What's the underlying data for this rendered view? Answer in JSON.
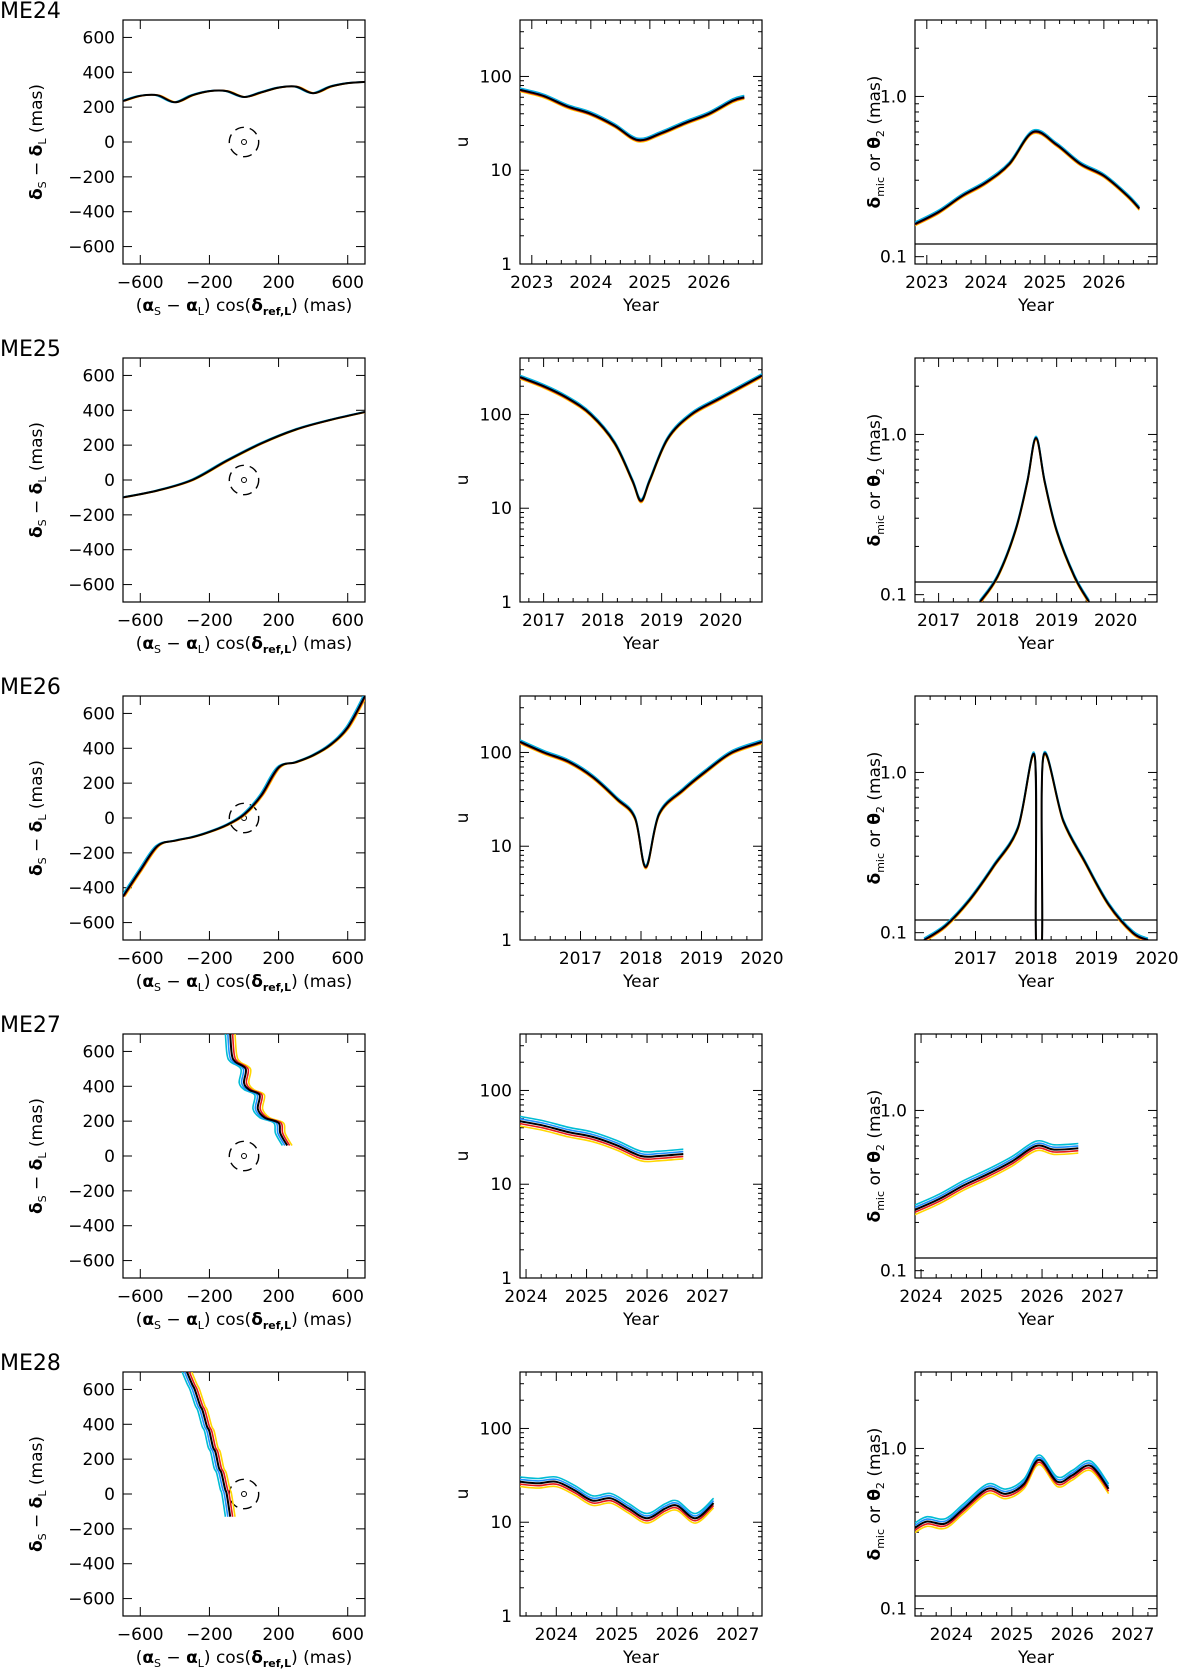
{
  "series_colors": [
    "#000000",
    "#e41a1c",
    "#ffd700",
    "#1e90ff",
    "#00bcd4"
  ],
  "chart_data": [
    {
      "type": "line",
      "row_label": "ME24",
      "panel": "trajectory",
      "xlabel": "(αS − αL) cos(δref,L) (mas)",
      "ylabel": "δS − δL (mas)",
      "xlim": [
        -700,
        700
      ],
      "ylim": [
        -700,
        700
      ],
      "xticks": [
        -600,
        -200,
        200,
        600
      ],
      "yticks": [
        -600,
        -400,
        -200,
        0,
        200,
        400,
        600
      ],
      "xticklabels": [
        "−600",
        "−200",
        "200",
        "600"
      ],
      "yticklabels": [
        "−600",
        "−400",
        "−200",
        "0",
        "200",
        "400",
        "600"
      ],
      "lens_marker": {
        "ring_radius": 85
      },
      "x": [
        -700,
        -600,
        -500,
        -400,
        -300,
        -200,
        -100,
        0,
        100,
        200,
        300,
        400,
        500,
        600,
        700
      ],
      "y": [
        235,
        265,
        268,
        228,
        268,
        292,
        292,
        258,
        285,
        312,
        318,
        280,
        318,
        338,
        345
      ]
    },
    {
      "type": "line",
      "row_label": "ME24",
      "panel": "u",
      "xlabel": "Year",
      "ylabel": "u",
      "yscale": "log",
      "xlim": [
        2022.8,
        2026.9
      ],
      "ylim": [
        1,
        400
      ],
      "xticks": [
        2023,
        2024,
        2025,
        2026
      ],
      "xticklabels": [
        "2023",
        "2024",
        "2025",
        "2026"
      ],
      "yticks": [
        1,
        10,
        100
      ],
      "yticklabels": [
        "1",
        "10",
        "100"
      ],
      "x": [
        2022.8,
        2023.2,
        2023.6,
        2024.0,
        2024.4,
        2024.8,
        2025.2,
        2025.6,
        2026.0,
        2026.4,
        2026.6
      ],
      "y": [
        72,
        62,
        48,
        40,
        30,
        21,
        25,
        32,
        40,
        55,
        60
      ]
    },
    {
      "type": "line",
      "row_label": "ME24",
      "panel": "shift",
      "xlabel": "Year",
      "ylabel": "δmic or θ2 (mas)",
      "yscale": "log",
      "xlim": [
        2022.8,
        2026.9
      ],
      "ylim": [
        0.09,
        3
      ],
      "xticks": [
        2023,
        2024,
        2025,
        2026
      ],
      "xticklabels": [
        "2023",
        "2024",
        "2025",
        "2026"
      ],
      "yticks": [
        0.1,
        1.0
      ],
      "yticklabels": [
        "0.1",
        "1.0"
      ],
      "threshold": 0.12,
      "x": [
        2022.8,
        2023.2,
        2023.6,
        2024.0,
        2024.4,
        2024.8,
        2025.2,
        2025.6,
        2026.0,
        2026.4,
        2026.6
      ],
      "y": [
        0.16,
        0.19,
        0.24,
        0.29,
        0.38,
        0.6,
        0.5,
        0.38,
        0.32,
        0.24,
        0.2
      ]
    },
    {
      "type": "line",
      "row_label": "ME25",
      "panel": "trajectory",
      "xlabel": "(αS − αL) cos(δref,L) (mas)",
      "ylabel": "δS − δL (mas)",
      "xlim": [
        -700,
        700
      ],
      "ylim": [
        -700,
        700
      ],
      "xticks": [
        -600,
        -200,
        200,
        600
      ],
      "yticks": [
        -600,
        -400,
        -200,
        0,
        200,
        400,
        600
      ],
      "xticklabels": [
        "−600",
        "−200",
        "200",
        "600"
      ],
      "yticklabels": [
        "−600",
        "−400",
        "−200",
        "0",
        "200",
        "400",
        "600"
      ],
      "lens_marker": {
        "ring_radius": 85
      },
      "x": [
        -700,
        -500,
        -300,
        -100,
        100,
        300,
        500,
        700
      ],
      "y": [
        -100,
        -60,
        0,
        110,
        210,
        290,
        345,
        390
      ]
    },
    {
      "type": "line",
      "row_label": "ME25",
      "panel": "u",
      "xlabel": "Year",
      "ylabel": "u",
      "yscale": "log",
      "xlim": [
        2016.6,
        2020.7
      ],
      "ylim": [
        1,
        400
      ],
      "xticks": [
        2017,
        2018,
        2019,
        2020
      ],
      "xticklabels": [
        "2017",
        "2018",
        "2019",
        "2020"
      ],
      "yticks": [
        1,
        10,
        100
      ],
      "yticklabels": [
        "1",
        "10",
        "100"
      ],
      "x": [
        2016.6,
        2017.0,
        2017.4,
        2017.8,
        2018.2,
        2018.5,
        2018.65,
        2018.8,
        2019.1,
        2019.5,
        2020.0,
        2020.7
      ],
      "y": [
        250,
        200,
        150,
        100,
        50,
        20,
        12,
        20,
        55,
        100,
        150,
        260
      ]
    },
    {
      "type": "line",
      "row_label": "ME25",
      "panel": "shift",
      "xlabel": "Year",
      "ylabel": "δmic or θ2 (mas)",
      "yscale": "log",
      "xlim": [
        2016.6,
        2020.7
      ],
      "ylim": [
        0.09,
        3
      ],
      "xticks": [
        2017,
        2018,
        2019,
        2020
      ],
      "xticklabels": [
        "2017",
        "2018",
        "2019",
        "2020"
      ],
      "yticks": [
        0.1,
        1.0
      ],
      "yticklabels": [
        "0.1",
        "1.0"
      ],
      "threshold": 0.12,
      "x": [
        2017.7,
        2018.0,
        2018.3,
        2018.5,
        2018.65,
        2018.8,
        2019.0,
        2019.3,
        2019.55
      ],
      "y": [
        0.09,
        0.13,
        0.25,
        0.5,
        0.95,
        0.5,
        0.25,
        0.13,
        0.09
      ]
    },
    {
      "type": "line",
      "row_label": "ME26",
      "panel": "trajectory",
      "xlabel": "(αS − αL) cos(δref,L) (mas)",
      "ylabel": "δS − δL (mas)",
      "xlim": [
        -700,
        700
      ],
      "ylim": [
        -700,
        700
      ],
      "xticks": [
        -600,
        -200,
        200,
        600
      ],
      "yticks": [
        -600,
        -400,
        -200,
        0,
        200,
        400,
        600
      ],
      "xticklabels": [
        "−600",
        "−200",
        "200",
        "600"
      ],
      "yticklabels": [
        "−600",
        "−400",
        "−200",
        "0",
        "200",
        "400",
        "600"
      ],
      "lens_marker": {
        "ring_radius": 85
      },
      "x": [
        -700,
        -600,
        -500,
        -400,
        -300,
        -200,
        -100,
        0,
        100,
        200,
        300,
        400,
        500,
        600,
        700
      ],
      "y": [
        -450,
        -300,
        -160,
        -130,
        -110,
        -80,
        -40,
        20,
        130,
        290,
        320,
        360,
        420,
        520,
        700
      ]
    },
    {
      "type": "line",
      "row_label": "ME26",
      "panel": "u",
      "xlabel": "Year",
      "ylabel": "u",
      "yscale": "log",
      "xlim": [
        2016.0,
        2020.0
      ],
      "ylim": [
        1,
        400
      ],
      "xticks": [
        2017,
        2018,
        2019,
        2020
      ],
      "xticklabels": [
        "2017",
        "2018",
        "2019",
        "2020"
      ],
      "yticks": [
        1,
        10,
        100
      ],
      "yticklabels": [
        "1",
        "10",
        "100"
      ],
      "x": [
        2016.0,
        2016.4,
        2016.8,
        2017.2,
        2017.6,
        2017.9,
        2018.08,
        2018.3,
        2018.7,
        2019.1,
        2019.5,
        2020.0
      ],
      "y": [
        130,
        100,
        80,
        55,
        32,
        20,
        6,
        22,
        40,
        65,
        100,
        130
      ]
    },
    {
      "type": "line",
      "row_label": "ME26",
      "panel": "shift",
      "xlabel": "Year",
      "ylabel": "δmic or θ2 (mas)",
      "yscale": "log",
      "xlim": [
        2016.0,
        2020.0
      ],
      "ylim": [
        0.09,
        3
      ],
      "xticks": [
        2017,
        2018,
        2019,
        2020
      ],
      "xticklabels": [
        "2017",
        "2018",
        "2019",
        "2020"
      ],
      "yticks": [
        0.1,
        1.0
      ],
      "yticklabels": [
        "0.1",
        "1.0"
      ],
      "threshold": 0.12,
      "x": [
        2016.15,
        2016.5,
        2016.9,
        2017.3,
        2017.7,
        2017.98,
        2018.0,
        2018.1,
        2018.12,
        2018.45,
        2018.8,
        2019.2,
        2019.6,
        2019.85
      ],
      "y": [
        0.09,
        0.11,
        0.16,
        0.26,
        0.45,
        1.25,
        0.09,
        0.09,
        1.25,
        0.5,
        0.28,
        0.15,
        0.1,
        0.09
      ]
    },
    {
      "type": "line",
      "row_label": "ME27",
      "panel": "trajectory",
      "xlabel": "(αS − αL) cos(δref,L) (mas)",
      "ylabel": "δS − δL (mas)",
      "xlim": [
        -700,
        700
      ],
      "ylim": [
        -700,
        700
      ],
      "xticks": [
        -600,
        -200,
        200,
        600
      ],
      "yticks": [
        -600,
        -400,
        -200,
        0,
        200,
        400,
        600
      ],
      "xticklabels": [
        "−600",
        "−200",
        "200",
        "600"
      ],
      "yticklabels": [
        "−600",
        "−400",
        "−200",
        "0",
        "200",
        "400",
        "600"
      ],
      "lens_marker": {
        "ring_radius": 85
      },
      "x": [
        -80,
        -70,
        -50,
        10,
        0,
        30,
        90,
        80,
        120,
        200,
        210,
        250
      ],
      "y": [
        700,
        580,
        540,
        500,
        420,
        380,
        350,
        270,
        220,
        190,
        130,
        60
      ]
    },
    {
      "type": "line",
      "row_label": "ME27",
      "panel": "u",
      "xlabel": "Year",
      "ylabel": "u",
      "yscale": "log",
      "xlim": [
        2023.9,
        2027.9
      ],
      "ylim": [
        1,
        400
      ],
      "xticks": [
        2024,
        2025,
        2026,
        2027
      ],
      "xticklabels": [
        "2024",
        "2025",
        "2026",
        "2027"
      ],
      "yticks": [
        1,
        10,
        100
      ],
      "yticklabels": [
        "1",
        "10",
        "100"
      ],
      "x": [
        2023.9,
        2024.3,
        2024.7,
        2025.1,
        2025.5,
        2025.9,
        2026.2,
        2026.6
      ],
      "y": [
        47,
        42,
        36,
        32,
        26,
        20,
        20,
        21
      ]
    },
    {
      "type": "line",
      "row_label": "ME27",
      "panel": "shift",
      "xlabel": "Year",
      "ylabel": "δmic or θ2 (mas)",
      "yscale": "log",
      "xlim": [
        2023.9,
        2027.9
      ],
      "ylim": [
        0.09,
        3
      ],
      "xticks": [
        2024,
        2025,
        2026,
        2027
      ],
      "xticklabels": [
        "2024",
        "2025",
        "2026",
        "2027"
      ],
      "yticks": [
        0.1,
        1.0
      ],
      "yticklabels": [
        "0.1",
        "1.0"
      ],
      "threshold": 0.12,
      "x": [
        2023.9,
        2024.3,
        2024.7,
        2025.1,
        2025.5,
        2025.9,
        2026.2,
        2026.6
      ],
      "y": [
        0.24,
        0.28,
        0.34,
        0.4,
        0.48,
        0.6,
        0.57,
        0.58
      ]
    },
    {
      "type": "line",
      "row_label": "ME28",
      "panel": "trajectory",
      "xlabel": "(αS − αL) cos(δref,L) (mas)",
      "ylabel": "δS − δL (mas)",
      "xlim": [
        -700,
        700
      ],
      "ylim": [
        -700,
        700
      ],
      "xticks": [
        -600,
        -200,
        200,
        600
      ],
      "yticks": [
        -600,
        -400,
        -200,
        0,
        200,
        400,
        600
      ],
      "xticklabels": [
        "−600",
        "−200",
        "200",
        "600"
      ],
      "yticklabels": [
        "−600",
        "−400",
        "−200",
        "0",
        "200",
        "400",
        "600"
      ],
      "lens_marker": {
        "ring_radius": 85
      },
      "x": [
        -330,
        -300,
        -285,
        -255,
        -240,
        -215,
        -200,
        -180,
        -165,
        -145,
        -130,
        -110,
        -100,
        -80
      ],
      "y": [
        700,
        630,
        600,
        510,
        480,
        390,
        360,
        270,
        240,
        150,
        120,
        30,
        0,
        -130
      ]
    },
    {
      "type": "line",
      "row_label": "ME28",
      "panel": "u",
      "xlabel": "Year",
      "ylabel": "u",
      "yscale": "log",
      "xlim": [
        2023.4,
        2027.4
      ],
      "ylim": [
        1,
        400
      ],
      "xticks": [
        2024,
        2025,
        2026,
        2027
      ],
      "xticklabels": [
        "2024",
        "2025",
        "2026",
        "2027"
      ],
      "yticks": [
        1,
        10,
        100
      ],
      "yticklabels": [
        "1",
        "10",
        "100"
      ],
      "x": [
        2023.4,
        2023.7,
        2024.0,
        2024.3,
        2024.6,
        2024.9,
        2025.2,
        2025.5,
        2025.8,
        2026.0,
        2026.3,
        2026.6
      ],
      "y": [
        27,
        26,
        27,
        22,
        17,
        18,
        14,
        11,
        14,
        15,
        11,
        16
      ]
    },
    {
      "type": "line",
      "row_label": "ME28",
      "panel": "shift",
      "xlabel": "Year",
      "ylabel": "δmic or θ2 (mas)",
      "yscale": "log",
      "xlim": [
        2023.4,
        2027.4
      ],
      "ylim": [
        0.09,
        3
      ],
      "xticks": [
        2024,
        2025,
        2026,
        2027
      ],
      "xticklabels": [
        "2024",
        "2025",
        "2026",
        "2027"
      ],
      "yticks": [
        0.1,
        1.0
      ],
      "yticklabels": [
        "0.1",
        "1.0"
      ],
      "threshold": 0.12,
      "x": [
        2023.4,
        2023.6,
        2023.9,
        2024.2,
        2024.6,
        2024.9,
        2025.2,
        2025.45,
        2025.75,
        2026.0,
        2026.3,
        2026.6
      ],
      "y": [
        0.32,
        0.35,
        0.34,
        0.42,
        0.56,
        0.52,
        0.6,
        0.85,
        0.62,
        0.68,
        0.78,
        0.56
      ]
    }
  ]
}
